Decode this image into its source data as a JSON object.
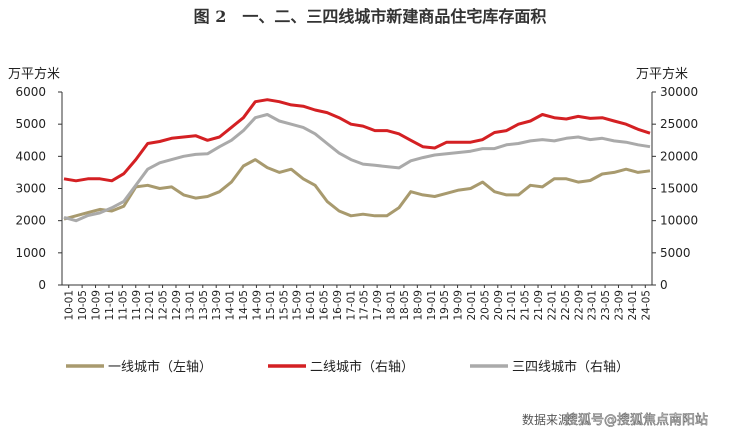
{
  "chart_data": {
    "type": "line",
    "title": "图 2　一、二、三四线城市新建商品住宅库存面积",
    "left_unit": "万平方米",
    "right_unit": "万平方米",
    "y_left": {
      "lim": [
        0,
        6000
      ],
      "ticks": [
        0,
        1000,
        2000,
        3000,
        4000,
        5000,
        6000
      ]
    },
    "y_right": {
      "lim": [
        0,
        30000
      ],
      "ticks": [
        0,
        5000,
        10000,
        15000,
        20000,
        25000,
        30000
      ]
    },
    "x_ticks": [
      "10-01",
      "10-05",
      "10-09",
      "11-01",
      "11-05",
      "11-09",
      "12-01",
      "12-05",
      "12-09",
      "13-01",
      "13-05",
      "13-09",
      "14-01",
      "14-05",
      "14-09",
      "15-01",
      "15-05",
      "15-09",
      "16-01",
      "16-05",
      "16-09",
      "17-01",
      "17-05",
      "17-09",
      "18-01",
      "18-05",
      "18-09",
      "19-01",
      "19-05",
      "19-09",
      "20-01",
      "20-05",
      "20-09",
      "21-01",
      "21-05",
      "21-09",
      "22-01",
      "22-05",
      "22-09",
      "23-01",
      "23-05",
      "23-09",
      "24-01",
      "24-05"
    ],
    "series": [
      {
        "name": "一线城市（左轴）",
        "axis": "left",
        "color": "#a89a6e",
        "values": [
          2050,
          2150,
          2250,
          2350,
          2300,
          2450,
          3050,
          3100,
          3000,
          3050,
          2800,
          2700,
          2750,
          2900,
          3200,
          3700,
          3900,
          3650,
          3500,
          3600,
          3300,
          3100,
          2600,
          2300,
          2150,
          2200,
          2150,
          2150,
          2400,
          2900,
          2800,
          2750,
          2850,
          2950,
          3000,
          3200,
          2900,
          2800,
          2800,
          3100,
          3050,
          3300,
          3300,
          3200,
          3250,
          3450,
          3500,
          3600,
          3500,
          3550
        ]
      },
      {
        "name": "二线城市（右轴）",
        "axis": "right",
        "color": "#d42023",
        "values": [
          16500,
          16200,
          16500,
          16500,
          16200,
          17300,
          19500,
          22000,
          22300,
          22800,
          23000,
          23200,
          22500,
          23000,
          24500,
          26000,
          28500,
          28800,
          28500,
          28000,
          27800,
          27200,
          26800,
          26000,
          25000,
          24700,
          24000,
          24000,
          23500,
          22500,
          21500,
          21300,
          22200,
          22200,
          22200,
          22600,
          23700,
          24000,
          25000,
          25500,
          26500,
          26000,
          25800,
          26200,
          25900,
          26000,
          25500,
          25000,
          24200,
          23600
        ]
      },
      {
        "name": "三四线城市（右轴）",
        "axis": "right",
        "color": "#aaaaaa",
        "values": [
          10500,
          10000,
          10800,
          11200,
          12000,
          13000,
          15500,
          18000,
          19000,
          19500,
          20000,
          20300,
          20400,
          21500,
          22500,
          24000,
          26000,
          26500,
          25500,
          25000,
          24500,
          23500,
          22000,
          20500,
          19500,
          18800,
          18600,
          18400,
          18200,
          19300,
          19800,
          20200,
          20400,
          20600,
          20800,
          21200,
          21200,
          21800,
          22000,
          22400,
          22600,
          22400,
          22800,
          23000,
          22600,
          22800,
          22400,
          22200,
          21800,
          21500
        ]
      }
    ]
  },
  "legend": [
    {
      "label": "一线城市（左轴）",
      "color": "#a89a6e"
    },
    {
      "label": "二线城市（右轴）",
      "color": "#d42023"
    },
    {
      "label": "三四线城市（右轴）",
      "color": "#aaaaaa"
    }
  ],
  "source": "数据来源：",
  "watermark": "搜狐号@搜狐焦点南阳站"
}
